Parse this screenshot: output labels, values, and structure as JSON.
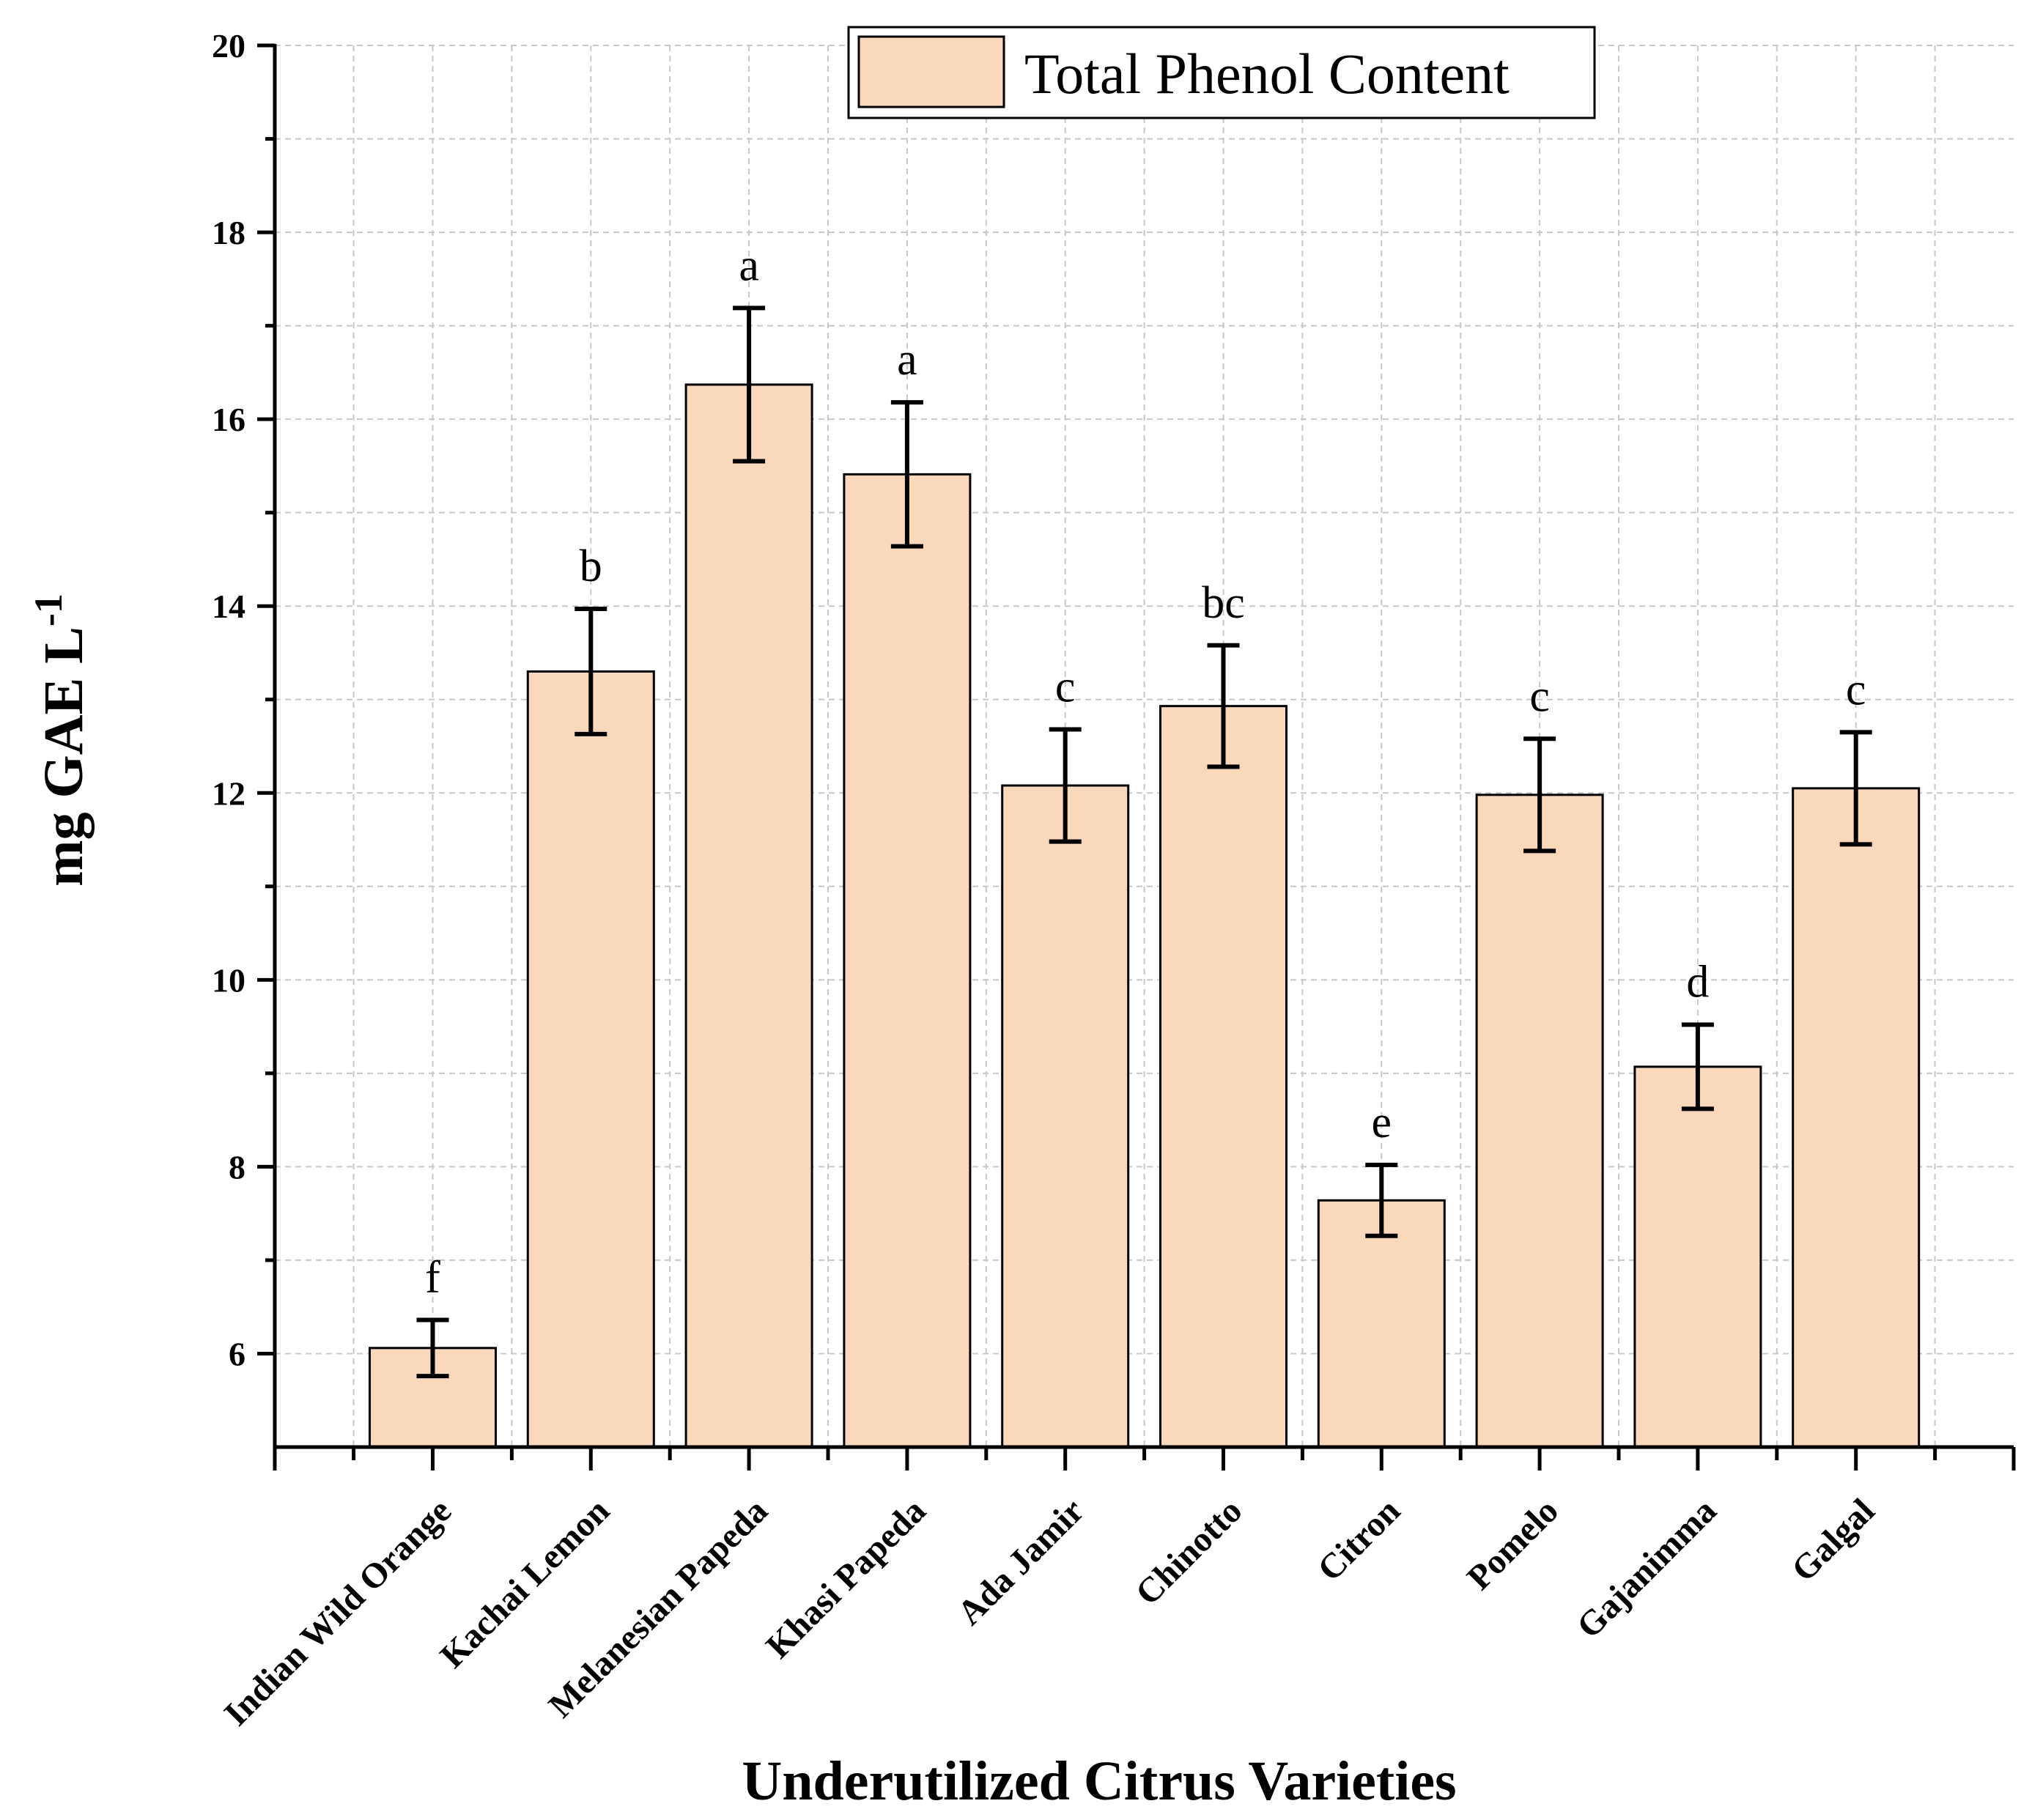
{
  "chart_data": {
    "type": "bar",
    "title": "",
    "xlabel": "Underutilized Citrus Varieties",
    "ylabel": "mg GAE L",
    "ylabel_superscript": "-1",
    "ylim": [
      5,
      20
    ],
    "yticks": [
      6,
      8,
      10,
      12,
      14,
      16,
      18,
      20
    ],
    "grid": true,
    "legend": {
      "position": "top-right",
      "entries": [
        "Total Phenol Content"
      ]
    },
    "categories": [
      "Indian Wild Orange",
      "Kachai Lemon",
      "Melanesian Papeda",
      "Khasi Papeda",
      "Ada Jamir",
      "Chinotto",
      "Citron",
      "Pomelo",
      "Gajanimma",
      "Galgal"
    ],
    "series": [
      {
        "name": "Total Phenol Content",
        "color": "#FAD8BB",
        "values": [
          6.06,
          13.3,
          16.37,
          15.41,
          12.08,
          12.93,
          7.64,
          11.98,
          9.07,
          12.05
        ],
        "errors": [
          0.3,
          0.67,
          0.82,
          0.77,
          0.6,
          0.65,
          0.38,
          0.6,
          0.45,
          0.6
        ],
        "significance": [
          "f",
          "b",
          "a",
          "a",
          "c",
          "bc",
          "e",
          "c",
          "d",
          "c"
        ]
      }
    ]
  }
}
